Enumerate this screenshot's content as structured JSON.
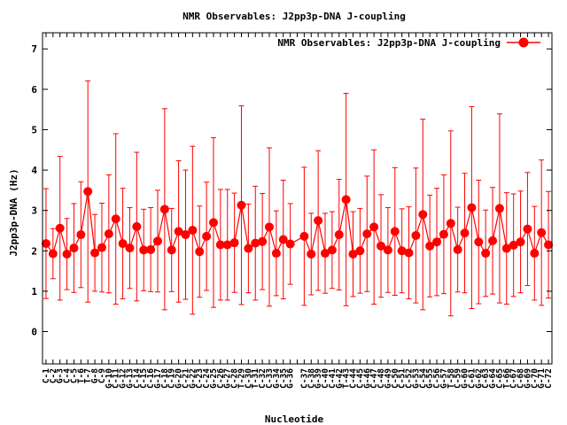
{
  "chart_data": {
    "type": "line",
    "title": "NMR Observables: J2pp3p-DNA J-coupling",
    "xlabel": "Nucleotide",
    "ylabel": "J2pp3p-DNA (Hz)",
    "ylim": [
      -0.8,
      7.4
    ],
    "yticks": [
      0,
      1,
      2,
      3,
      4,
      5,
      6,
      7
    ],
    "grid": false,
    "legend_position": "top-right",
    "colors": {
      "series": "#ff0000",
      "axes": "#000000"
    },
    "x": [
      "C-1",
      "C-2",
      "G-3",
      "C-4",
      "C-5",
      "T-6",
      "T-7",
      "G-8",
      "C-9",
      "G-10",
      "C-11",
      "G-12",
      "G-13",
      "C-14",
      "C-15",
      "C-16",
      "G-17",
      "C-18",
      "C-19",
      "G-20",
      "C-21",
      "G-22",
      "C-23",
      "C-24",
      "G-25",
      "C-26",
      "G-27",
      "C-28",
      "T-29",
      "C-30",
      "T-31",
      "C-32",
      "C-33",
      "G-34",
      "C-35",
      "G-36",
      "",
      "C-37",
      "C-38",
      "G-39",
      "C-40",
      "C-41",
      "G-42",
      "T-43",
      "C-44",
      "C-45",
      "G-46",
      "C-47",
      "C-48",
      "G-49",
      "C-50",
      "C-51",
      "C-52",
      "G-53",
      "C-54",
      "G-55",
      "C-56",
      "G-57",
      "T-58",
      "C-59",
      "G-60",
      "C-61",
      "G-62",
      "C-63",
      "G-64",
      "C-65",
      "T-66",
      "C-67",
      "C-68",
      "G-69",
      "C-70",
      "G-71",
      "C-72"
    ],
    "series": [
      {
        "name": "NMR Observables: J2pp3p-DNA J-coupling",
        "values": [
          2.18,
          1.93,
          2.56,
          1.92,
          2.07,
          2.4,
          3.47,
          1.95,
          2.08,
          2.42,
          2.79,
          2.18,
          2.07,
          2.6,
          2.02,
          2.03,
          2.24,
          3.03,
          2.02,
          2.48,
          2.4,
          2.51,
          1.98,
          2.36,
          2.7,
          2.15,
          2.15,
          2.2,
          3.13,
          2.06,
          2.19,
          2.23,
          2.59,
          1.94,
          2.28,
          2.17,
          null,
          2.36,
          1.92,
          2.75,
          1.94,
          2.02,
          2.4,
          3.27,
          1.92,
          2.0,
          2.42,
          2.59,
          2.12,
          2.02,
          2.48,
          2.0,
          1.95,
          2.38,
          2.9,
          2.12,
          2.22,
          2.41,
          2.68,
          2.03,
          2.44,
          3.07,
          2.22,
          1.94,
          2.25,
          3.05,
          2.06,
          2.14,
          2.22,
          2.54,
          1.94,
          2.45,
          2.15
        ],
        "error": [
          1.36,
          0.62,
          1.78,
          0.88,
          1.1,
          1.31,
          2.74,
          0.95,
          1.1,
          1.46,
          2.11,
          1.37,
          1.0,
          1.84,
          1.01,
          1.04,
          1.26,
          2.49,
          1.03,
          1.75,
          1.6,
          2.08,
          1.13,
          1.34,
          2.1,
          1.37,
          1.37,
          1.23,
          2.46,
          1.1,
          1.41,
          1.19,
          1.96,
          1.05,
          1.47,
          1.0,
          null,
          1.71,
          1.01,
          1.73,
          0.99,
          0.95,
          1.37,
          2.63,
          1.05,
          1.05,
          1.43,
          1.91,
          1.27,
          1.05,
          1.58,
          1.04,
          1.14,
          1.67,
          2.36,
          1.26,
          1.33,
          1.47,
          2.29,
          1.05,
          1.48,
          2.5,
          1.53,
          1.07,
          1.32,
          2.34,
          1.38,
          1.27,
          1.26,
          1.4,
          1.16,
          1.8,
          1.32
        ]
      }
    ]
  }
}
